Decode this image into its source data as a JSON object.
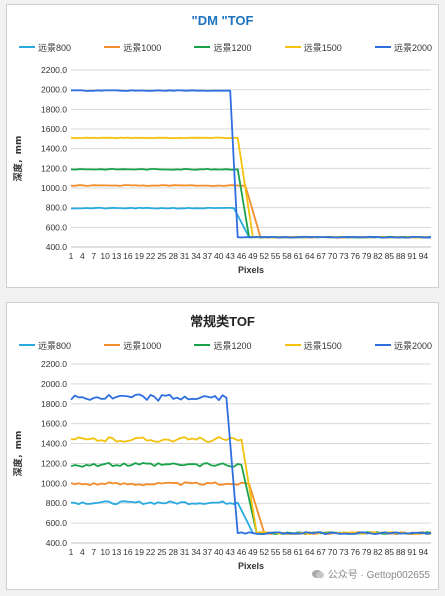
{
  "chart_data": [
    {
      "type": "line",
      "title": "\"DM \"TOF",
      "xlabel": "Pixels",
      "ylabel": "深度，mm",
      "ylim": [
        400,
        2200
      ],
      "yticks": [
        "400.0",
        "600.0",
        "800.0",
        "1000.0",
        "1200.0",
        "1400.0",
        "1600.0",
        "1800.0",
        "2000.0",
        "2200.0"
      ],
      "xtick_labels": [
        "1",
        "4",
        "7",
        "10",
        "13",
        "16",
        "19",
        "22",
        "25",
        "28",
        "31",
        "34",
        "37",
        "40",
        "43",
        "46",
        "49",
        "52",
        "55",
        "58",
        "61",
        "64",
        "67",
        "70",
        "73",
        "76",
        "79",
        "82",
        "85",
        "88",
        "91",
        "94"
      ],
      "grid": true,
      "legend_position": "top",
      "series": [
        {
          "name": "远景800",
          "color": "#29aae1",
          "near": 795,
          "drop": [
            44,
            48
          ],
          "far": 500,
          "noise": 4
        },
        {
          "name": "远景1000",
          "color": "#f28e2b",
          "near": 1025,
          "drop": [
            47,
            51
          ],
          "far": 500,
          "noise": 4
        },
        {
          "name": "远景1200",
          "color": "#1aa34a",
          "near": 1190,
          "drop": [
            45,
            48
          ],
          "far": 500,
          "noise": 4
        },
        {
          "name": "远景1500",
          "color": "#f4c20d",
          "near": 1510,
          "drop": [
            45,
            49
          ],
          "far": 500,
          "noise": 4
        },
        {
          "name": "远景2000",
          "color": "#2e6fe0",
          "near": 1990,
          "drop": [
            43,
            45
          ],
          "far": 500,
          "noise": 4
        }
      ]
    },
    {
      "type": "line",
      "title": "常规类TOF",
      "xlabel": "Pixels",
      "ylabel": "深度，mm",
      "ylim": [
        400,
        2200
      ],
      "yticks": [
        "400.0",
        "600.0",
        "800.0",
        "1000.0",
        "1200.0",
        "1400.0",
        "1600.0",
        "1800.0",
        "2000.0",
        "2200.0"
      ],
      "xtick_labels": [
        "1",
        "4",
        "7",
        "10",
        "13",
        "16",
        "19",
        "22",
        "25",
        "28",
        "31",
        "34",
        "37",
        "40",
        "43",
        "46",
        "49",
        "52",
        "55",
        "58",
        "61",
        "64",
        "67",
        "70",
        "73",
        "76",
        "79",
        "82",
        "85",
        "88",
        "91",
        "94"
      ],
      "grid": true,
      "legend_position": "top",
      "series": [
        {
          "name": "远景800",
          "color": "#29aae1",
          "near": 805,
          "drop": [
            45,
            49
          ],
          "far": 500,
          "noise": 15
        },
        {
          "name": "远景1000",
          "color": "#f28e2b",
          "near": 995,
          "drop": [
            48,
            52
          ],
          "far": 500,
          "noise": 15
        },
        {
          "name": "远景1200",
          "color": "#1aa34a",
          "near": 1185,
          "drop": [
            46,
            50
          ],
          "far": 500,
          "noise": 20
        },
        {
          "name": "远景1500",
          "color": "#f4c20d",
          "near": 1440,
          "drop": [
            46,
            50
          ],
          "far": 500,
          "noise": 25
        },
        {
          "name": "远景2000",
          "color": "#2e6fe0",
          "near": 1860,
          "drop": [
            42,
            45
          ],
          "far": 500,
          "noise": 35
        }
      ]
    }
  ],
  "watermark": {
    "text": "公众号 · Gettop002655"
  }
}
